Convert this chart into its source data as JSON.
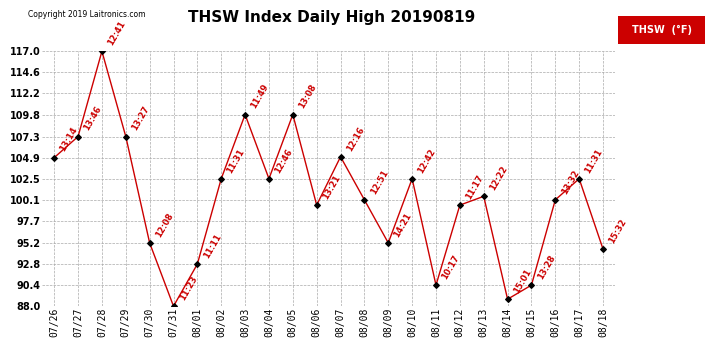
{
  "title": "THSW Index Daily High 20190819",
  "copyright": "Copyright 2019 Laitronics.com",
  "legend_label": "THSW  (°F)",
  "ylim": [
    88.0,
    117.0
  ],
  "yticks": [
    88.0,
    90.4,
    92.8,
    95.2,
    97.7,
    100.1,
    102.5,
    104.9,
    107.3,
    109.8,
    112.2,
    114.6,
    117.0
  ],
  "dates": [
    "07/26",
    "07/27",
    "07/28",
    "07/29",
    "07/30",
    "07/31",
    "08/01",
    "08/02",
    "08/03",
    "08/04",
    "08/05",
    "08/06",
    "08/07",
    "08/08",
    "08/09",
    "08/10",
    "08/11",
    "08/12",
    "08/13",
    "08/14",
    "08/15",
    "08/16",
    "08/17",
    "08/18"
  ],
  "values": [
    104.9,
    107.3,
    117.0,
    107.3,
    95.2,
    88.0,
    92.8,
    102.5,
    109.8,
    102.5,
    109.8,
    99.5,
    105.0,
    100.1,
    95.2,
    102.5,
    90.4,
    99.5,
    100.5,
    88.8,
    90.4,
    100.1,
    102.5,
    94.5
  ],
  "labels": [
    "13:14",
    "13:46",
    "12:41",
    "13:27",
    "12:08",
    "11:23",
    "11:11",
    "11:31",
    "11:49",
    "12:46",
    "13:08",
    "13:21",
    "12:16",
    "12:51",
    "14:21",
    "12:42",
    "10:17",
    "11:17",
    "12:22",
    "15:01",
    "13:28",
    "13:32",
    "11:31",
    "15:32"
  ],
  "line_color": "#cc0000",
  "marker_color": "#000000",
  "label_color": "#cc0000",
  "background_color": "#ffffff",
  "grid_color": "#aaaaaa",
  "title_fontsize": 11,
  "label_fontsize": 6.0,
  "tick_fontsize": 7,
  "legend_bg": "#cc0000",
  "legend_text_color": "#ffffff"
}
